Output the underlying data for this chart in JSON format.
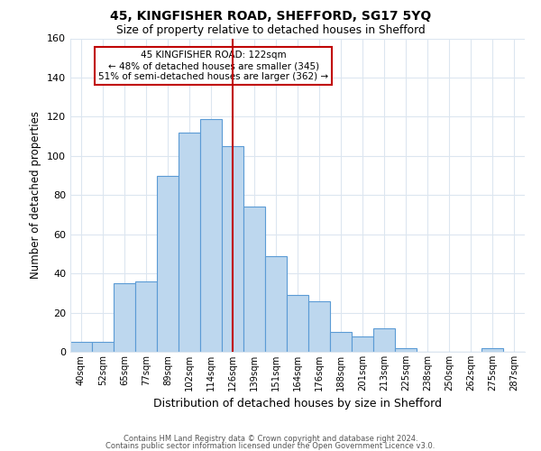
{
  "title1": "45, KINGFISHER ROAD, SHEFFORD, SG17 5YQ",
  "title2": "Size of property relative to detached houses in Shefford",
  "xlabel": "Distribution of detached houses by size in Shefford",
  "ylabel": "Number of detached properties",
  "bin_labels": [
    "40sqm",
    "52sqm",
    "65sqm",
    "77sqm",
    "89sqm",
    "102sqm",
    "114sqm",
    "126sqm",
    "139sqm",
    "151sqm",
    "164sqm",
    "176sqm",
    "188sqm",
    "201sqm",
    "213sqm",
    "225sqm",
    "238sqm",
    "250sqm",
    "262sqm",
    "275sqm",
    "287sqm"
  ],
  "bar_heights": [
    5,
    5,
    35,
    36,
    90,
    112,
    119,
    105,
    74,
    49,
    29,
    26,
    10,
    8,
    12,
    2,
    0,
    0,
    0,
    2,
    0
  ],
  "bar_color": "#bdd7ee",
  "bar_edge_color": "#5b9bd5",
  "ylim": [
    0,
    160
  ],
  "yticks": [
    0,
    20,
    40,
    60,
    80,
    100,
    120,
    140,
    160
  ],
  "vline_x": 7.0,
  "vline_color": "#c00000",
  "annotation_title": "45 KINGFISHER ROAD: 122sqm",
  "annotation_line1": "← 48% of detached houses are smaller (345)",
  "annotation_line2": "51% of semi-detached houses are larger (362) →",
  "annotation_box_color": "#ffffff",
  "annotation_box_edge": "#c00000",
  "footer1": "Contains HM Land Registry data © Crown copyright and database right 2024.",
  "footer2": "Contains public sector information licensed under the Open Government Licence v3.0.",
  "background_color": "#ffffff",
  "grid_color": "#dce6f0"
}
